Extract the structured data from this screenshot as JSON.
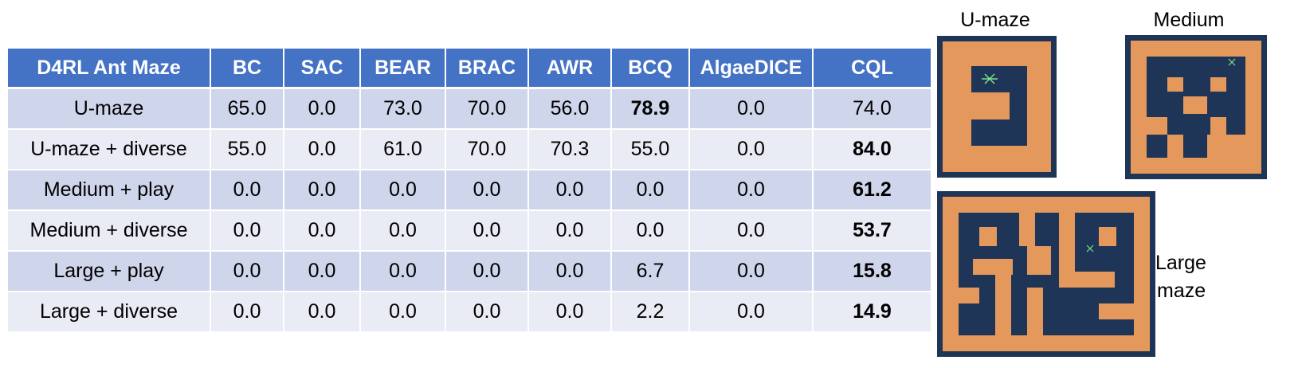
{
  "table": {
    "headers": [
      "D4RL Ant Maze",
      "BC",
      "SAC",
      "BEAR",
      "BRAC",
      "AWR",
      "BCQ",
      "AlgaeDICE",
      "CQL"
    ],
    "rows": [
      {
        "cells": [
          "U-maze",
          "65.0",
          "0.0",
          "73.0",
          "70.0",
          "56.0",
          "78.9",
          "0.0",
          "74.0"
        ],
        "bold": [
          6
        ]
      },
      {
        "cells": [
          "U-maze + diverse",
          "55.0",
          "0.0",
          "61.0",
          "70.0",
          "70.3",
          "55.0",
          "0.0",
          "84.0"
        ],
        "bold": [
          8
        ]
      },
      {
        "cells": [
          "Medium + play",
          "0.0",
          "0.0",
          "0.0",
          "0.0",
          "0.0",
          "0.0",
          "0.0",
          "61.2"
        ],
        "bold": [
          8
        ]
      },
      {
        "cells": [
          "Medium + diverse",
          "0.0",
          "0.0",
          "0.0",
          "0.0",
          "0.0",
          "0.0",
          "0.0",
          "53.7"
        ],
        "bold": [
          8
        ]
      },
      {
        "cells": [
          "Large + play",
          "0.0",
          "0.0",
          "0.0",
          "0.0",
          "0.0",
          "6.7",
          "0.0",
          "15.8"
        ],
        "bold": [
          8
        ]
      },
      {
        "cells": [
          "Large + diverse",
          "0.0",
          "0.0",
          "0.0",
          "0.0",
          "0.0",
          "2.2",
          "0.0",
          "14.9"
        ],
        "bold": [
          8
        ]
      }
    ]
  },
  "mazes": {
    "umaze_label": "U-maze",
    "medium_label": "Medium",
    "large_label_line1": "Large",
    "large_label_line2": "maze"
  },
  "colors": {
    "header_bg": "#4472c4",
    "row_odd": "#cfd5ea",
    "row_even": "#e9ebf5",
    "maze_wall": "#e4985b",
    "maze_floor": "#1e3557"
  }
}
